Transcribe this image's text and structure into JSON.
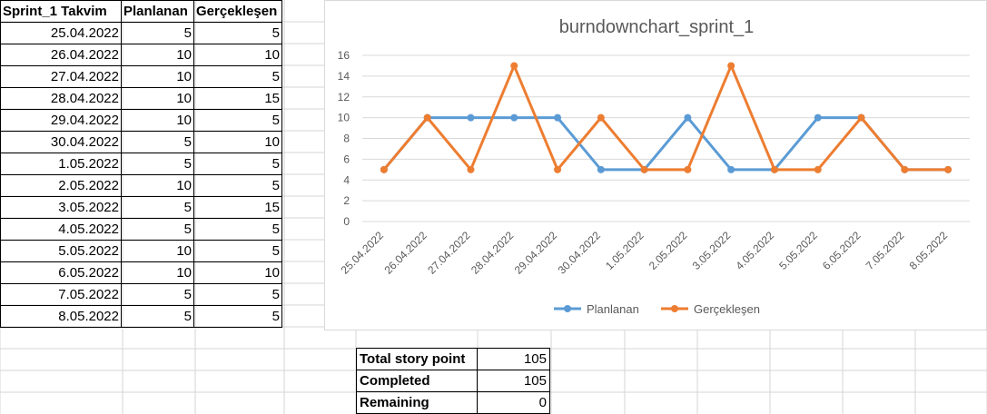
{
  "sheet": {
    "headers": [
      "Sprint_1 Takvim",
      "Planlanan",
      "Gerçekleşen"
    ],
    "rows": [
      [
        "25.04.2022",
        "5",
        "5"
      ],
      [
        "26.04.2022",
        "10",
        "10"
      ],
      [
        "27.04.2022",
        "10",
        "5"
      ],
      [
        "28.04.2022",
        "10",
        "15"
      ],
      [
        "29.04.2022",
        "10",
        "5"
      ],
      [
        "30.04.2022",
        "5",
        "10"
      ],
      [
        "1.05.2022",
        "5",
        "5"
      ],
      [
        "2.05.2022",
        "10",
        "5"
      ],
      [
        "3.05.2022",
        "5",
        "15"
      ],
      [
        "4.05.2022",
        "5",
        "5"
      ],
      [
        "5.05.2022",
        "10",
        "5"
      ],
      [
        "6.05.2022",
        "10",
        "10"
      ],
      [
        "7.05.2022",
        "5",
        "5"
      ],
      [
        "8.05.2022",
        "5",
        "5"
      ]
    ]
  },
  "summary": {
    "total_label": "Total story point",
    "total_value": "105",
    "completed_label": "Completed",
    "completed_value": "105",
    "remaining_label": "Remaining",
    "remaining_value": "0"
  },
  "colors": {
    "planlanan": "#5b9bd5",
    "gerceklesen": "#ed7d31",
    "gridline": "#d9d9d9",
    "axis_text": "#595959"
  },
  "chart_data": {
    "type": "line",
    "title": "burndownchart_sprint_1",
    "categories": [
      "25.04.2022",
      "26.04.2022",
      "27.04.2022",
      "28.04.2022",
      "29.04.2022",
      "30.04.2022",
      "1.05.2022",
      "2.05.2022",
      "3.05.2022",
      "4.05.2022",
      "5.05.2022",
      "6.05.2022",
      "7.05.2022",
      "8.05.2022"
    ],
    "series": [
      {
        "name": "Planlanan",
        "values": [
          5,
          10,
          10,
          10,
          10,
          5,
          5,
          10,
          5,
          5,
          10,
          10,
          5,
          5
        ]
      },
      {
        "name": "Gerçekleşen",
        "values": [
          5,
          10,
          5,
          15,
          5,
          10,
          5,
          5,
          15,
          5,
          5,
          10,
          5,
          5
        ]
      }
    ],
    "ylim": [
      0,
      16
    ],
    "yticks": [
      0,
      2,
      4,
      6,
      8,
      10,
      12,
      14,
      16
    ],
    "grid": true,
    "legend": "bottom"
  }
}
